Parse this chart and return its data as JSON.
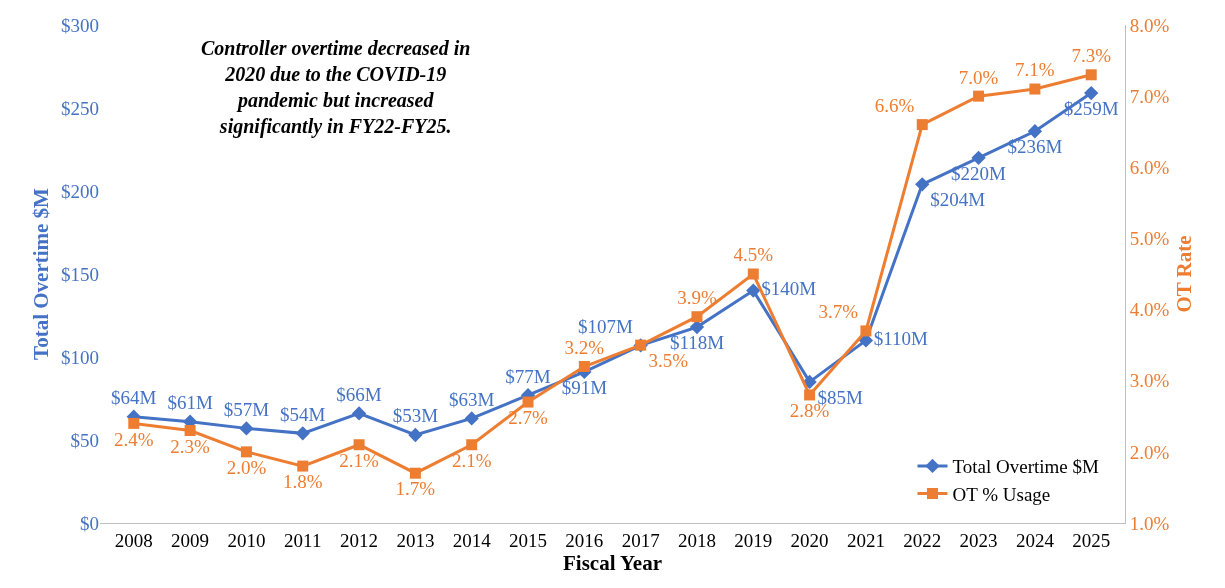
{
  "chart_data": {
    "type": "line",
    "xlabel": "Fiscal Year",
    "ylabel": "Total Overtime $M",
    "y2label": "OT Rate",
    "annotations": [
      "Controller overtime decreased in 2020 due to the COVID-19 pandemic but increased significantly in FY22-FY25."
    ],
    "categories": [
      "2008",
      "2009",
      "2010",
      "2011",
      "2012",
      "2013",
      "2014",
      "2015",
      "2016",
      "2017",
      "2018",
      "2019",
      "2020",
      "2021",
      "2022",
      "2023",
      "2024",
      "2025"
    ],
    "series": [
      {
        "name": "Total Overtime $M",
        "color": "#4472c4",
        "marker": "diamond",
        "values": [
          64,
          61,
          57,
          54,
          66,
          53,
          63,
          77,
          91,
          107,
          118,
          140,
          85,
          110,
          204,
          220,
          236,
          259
        ],
        "value_labels": [
          "$64M",
          "$61M",
          "$57M",
          "$54M",
          "$66M",
          "$53M",
          "$63M",
          "$77M",
          "$91M",
          "$107M",
          "$118M",
          "$140M",
          "$85M",
          "$110M",
          "$204M",
          "$220M",
          "$236M",
          "$259M"
        ]
      },
      {
        "name": "OT % Usage",
        "color": "#ed7d31",
        "marker": "square",
        "axis": "y2",
        "values": [
          2.4,
          2.3,
          2.0,
          1.8,
          2.1,
          1.7,
          2.1,
          2.7,
          3.2,
          3.5,
          3.9,
          4.5,
          2.8,
          3.7,
          6.6,
          7.0,
          7.1,
          7.3
        ],
        "value_labels": [
          "2.4%",
          "2.3%",
          "2.0%",
          "1.8%",
          "2.1%",
          "1.7%",
          "2.1%",
          "2.7%",
          "3.2%",
          "3.5%",
          "3.9%",
          "4.5%",
          "2.8%",
          "3.7%",
          "6.6%",
          "7.0%",
          "7.1%",
          "7.3%"
        ]
      }
    ],
    "ylim": [
      0,
      300
    ],
    "yticks": [
      {
        "value": 0,
        "label": "$0"
      },
      {
        "value": 50,
        "label": "$50"
      },
      {
        "value": 100,
        "label": "$100"
      },
      {
        "value": 150,
        "label": "$150"
      },
      {
        "value": 200,
        "label": "$200"
      },
      {
        "value": 250,
        "label": "$250"
      },
      {
        "value": 300,
        "label": "$300"
      }
    ],
    "y2lim": [
      1,
      8
    ],
    "y2ticks": [
      {
        "value": 1,
        "label": "1.0%"
      },
      {
        "value": 2,
        "label": "2.0%"
      },
      {
        "value": 3,
        "label": "3.0%"
      },
      {
        "value": 4,
        "label": "4.0%"
      },
      {
        "value": 5,
        "label": "5.0%"
      },
      {
        "value": 6,
        "label": "6.0%"
      },
      {
        "value": 7,
        "label": "7.0%"
      },
      {
        "value": 8,
        "label": "8.0%"
      }
    ],
    "grid": false,
    "legend": "bottom right",
    "line_style": "solid"
  }
}
